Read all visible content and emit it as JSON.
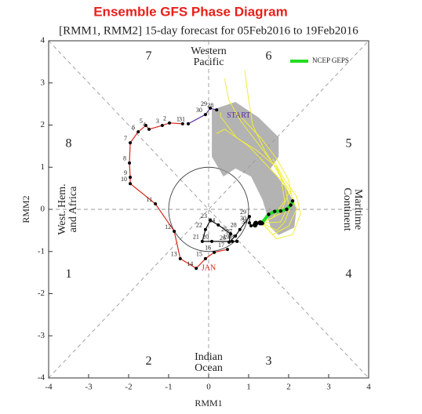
{
  "chart_data": {
    "type": "phase",
    "title": "Ensemble GFS Phase Diagram",
    "subtitle": "[RMM1, RMM2] 15-day forecast for 05Feb2016 to 19Feb2016",
    "xlabel": "RMM1",
    "ylabel": "RMM2",
    "xlim": [
      -4,
      4
    ],
    "ylim": [
      -4,
      4
    ],
    "xticks": [
      -4,
      -3,
      -2,
      -1,
      0,
      1,
      2,
      3,
      4
    ],
    "yticks": [
      -4,
      -3,
      -2,
      -1,
      0,
      1,
      2,
      3,
      4
    ],
    "phases": [
      "1",
      "2",
      "3",
      "4",
      "5",
      "6",
      "7",
      "8"
    ],
    "regions": {
      "top": [
        "Western",
        "Pacific"
      ],
      "left": [
        "West. Hem.",
        "and Africa"
      ],
      "right": [
        "Maritime",
        "Continent"
      ],
      "bottom": [
        "Indian",
        "Ocean"
      ]
    },
    "annotations": [
      {
        "text": "START",
        "color": "#5a2ea6",
        "x": 0.75,
        "y": 2.22
      },
      {
        "text": "JAN",
        "color": "#d9261c",
        "x": 0.0,
        "y": -1.4
      }
    ],
    "observed": [
      {
        "color": "#5a2ea6",
        "x": [
          0.2,
          0.04,
          -0.08,
          -0.51
        ],
        "values": [
          2.36,
          2.4,
          2.25,
          2.03
        ],
        "labels": [
          "28",
          "29",
          "30",
          "31"
        ]
      },
      {
        "color": "#d9261c",
        "x": [
          -0.65,
          -0.98,
          -1.16,
          -1.49,
          -1.57,
          -1.76,
          -1.96,
          -1.98,
          -1.96,
          -1.96,
          -1.33,
          -0.86,
          -0.71,
          -0.31,
          -0.08,
          0.14,
          0.47
        ],
        "values": [
          2.03,
          2.05,
          1.99,
          1.9,
          1.99,
          1.84,
          1.58,
          1.1,
          0.76,
          0.61,
          0.13,
          -0.52,
          -1.17,
          -1.4,
          -1.17,
          -1.02,
          -0.95
        ],
        "labels": [
          "1",
          "2",
          "3",
          "4",
          "5",
          "6",
          "7",
          "8",
          "9",
          "10",
          "11",
          "12",
          "13",
          "14",
          "15",
          "16",
          "17"
        ]
      },
      {
        "color": "#111111",
        "x": [
          0.71,
          0.59,
          0.08,
          -0.16,
          -0.08,
          0.04,
          0.24,
          0.55,
          0.51,
          0.67,
          0.78,
          1.02,
          1.02,
          1.06,
          1.16,
          1.18,
          1.29,
          1.33
        ],
        "values": [
          -0.76,
          -0.76,
          -0.76,
          -0.76,
          -0.48,
          -0.26,
          -0.37,
          -0.58,
          -0.78,
          -0.63,
          -0.48,
          -0.17,
          -0.32,
          -0.39,
          -0.37,
          -0.33,
          -0.32,
          -0.32
        ],
        "labels": [
          "18",
          "19",
          "20",
          "21",
          "22",
          "23",
          "24",
          "25",
          "26",
          "27",
          "28",
          "29",
          "30",
          "31",
          null,
          null,
          null,
          null
        ]
      }
    ],
    "spread": {
      "color": "#9a9a9a",
      "x": [
        0.08,
        0.08,
        0.67,
        1.25,
        1.75,
        1.75,
        1.55,
        1.94,
        2.2,
        2.14,
        1.75,
        1.55,
        1.35,
        1.06,
        0.67,
        0.37
      ],
      "values": [
        1.25,
        2.36,
        2.55,
        2.18,
        1.71,
        1.25,
        0.97,
        0.5,
        0.04,
        -0.43,
        -0.61,
        -0.43,
        0.22,
        0.78,
        0.97,
        0.78
      ]
    },
    "members": [
      {
        "color": "#f2ee3a",
        "x": [
          1.33,
          1.8,
          2.0,
          1.9,
          1.6,
          1.2,
          0.8,
          0.5,
          0.4
        ],
        "values": [
          -0.32,
          -0.3,
          0.1,
          0.6,
          1.1,
          1.6,
          2.1,
          2.6,
          3.1
        ]
      },
      {
        "color": "#f2ee3a",
        "x": [
          1.33,
          1.7,
          1.9,
          2.1,
          2.0,
          1.7,
          1.3,
          1.0,
          0.7
        ],
        "values": [
          -0.32,
          -0.5,
          -0.3,
          0.2,
          0.7,
          1.2,
          1.7,
          2.0,
          2.3
        ]
      },
      {
        "color": "#f2ee3a",
        "x": [
          1.33,
          1.6,
          2.0,
          2.2,
          2.0,
          1.5,
          1.0,
          0.4,
          0.2
        ],
        "values": [
          -0.32,
          -0.6,
          -0.4,
          0.0,
          0.5,
          1.0,
          1.5,
          1.9,
          1.8
        ]
      },
      {
        "color": "#f2ee3a",
        "x": [
          1.33,
          1.6,
          1.9,
          1.8,
          1.4,
          1.1,
          1.0,
          0.9
        ],
        "values": [
          -0.32,
          -0.2,
          0.2,
          0.8,
          1.4,
          2.0,
          2.6,
          3.3
        ]
      },
      {
        "color": "#f2ee3a",
        "x": [
          1.33,
          1.7,
          2.1,
          2.3,
          2.2,
          1.9,
          1.6
        ],
        "values": [
          -0.32,
          -0.7,
          -0.6,
          -0.1,
          0.3,
          0.7,
          1.2
        ]
      },
      {
        "color": "#f2ee3a",
        "x": [
          1.33,
          1.8,
          2.0,
          1.7,
          1.2,
          0.7,
          0.3,
          0.3
        ],
        "values": [
          -0.32,
          -0.1,
          0.4,
          1.0,
          1.4,
          1.7,
          2.2,
          2.3
        ]
      }
    ],
    "series": [
      {
        "name": "NCEP GEPS",
        "color": "#22dd22",
        "x": [
          1.33,
          1.5,
          1.65,
          1.8,
          1.95,
          2.05,
          2.1
        ],
        "values": [
          -0.32,
          -0.12,
          -0.05,
          -0.04,
          0.0,
          0.1,
          0.2
        ]
      }
    ]
  }
}
